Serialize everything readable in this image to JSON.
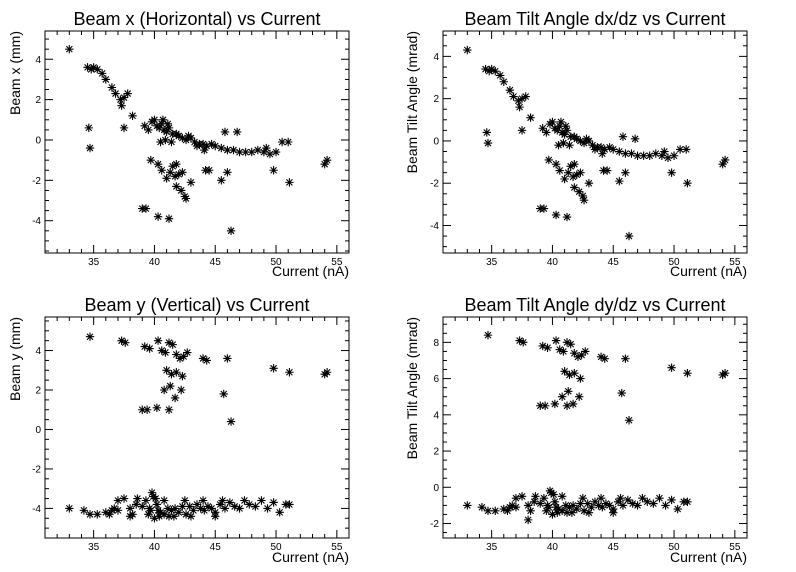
{
  "chart_data": [
    {
      "type": "scatter",
      "title": "Beam x (Horizontal) vs Current",
      "xlabel": "Current (nA)",
      "ylabel": "Beam x (mm)",
      "xlim": [
        31,
        56
      ],
      "ylim": [
        -5.6,
        5.4
      ],
      "xticks": [
        35,
        40,
        45,
        50,
        55
      ],
      "yticks": [
        -4,
        -2,
        0,
        2,
        4
      ],
      "ytick_labels": [
        "-4",
        "-2",
        "0",
        "2",
        "4"
      ],
      "series": [
        {
          "x": [
            33.0,
            34.5,
            34.8,
            35.0,
            35.3,
            35.7,
            36.0,
            36.5,
            36.8,
            37.2,
            37.5,
            37.8,
            38.2,
            37.3,
            37.5,
            34.6,
            34.7,
            39.2,
            39.5,
            39.8,
            40.0,
            40.2,
            40.4,
            40.6,
            40.8,
            41.0,
            41.2,
            41.5,
            41.8,
            42.0,
            42.3,
            42.6,
            43.0,
            43.3,
            43.7,
            44.0,
            44.3,
            44.7,
            45.0,
            45.5,
            46.0,
            46.5,
            47.0,
            47.5,
            48.0,
            48.5,
            49.0,
            49.5,
            50.0,
            50.5,
            51.0,
            39.7,
            40.3,
            40.6,
            41.0,
            41.3,
            41.7,
            42.0,
            42.3,
            42.5,
            43.0,
            41.8,
            42.2,
            42.6,
            41.5,
            41.8,
            44.2,
            44.5,
            45.5,
            46.0,
            39.0,
            39.3,
            40.3,
            41.2,
            46.3,
            49.8,
            51.1,
            54.0,
            54.2,
            40.7,
            41.1,
            42.8,
            40.5,
            40.9,
            41.4,
            43.5,
            44.1,
            45.8,
            46.8,
            49.2
          ],
          "y": [
            4.5,
            3.6,
            3.5,
            3.6,
            3.5,
            3.3,
            3.0,
            2.6,
            2.3,
            2.0,
            2.1,
            2.3,
            1.2,
            1.7,
            0.6,
            0.6,
            -0.4,
            0.7,
            0.5,
            0.9,
            1.0,
            0.7,
            0.6,
            0.8,
            0.5,
            0.4,
            0.6,
            0.3,
            0.3,
            0.2,
            0.1,
            0.0,
            0.1,
            -0.1,
            -0.2,
            -0.2,
            -0.3,
            -0.2,
            -0.3,
            -0.4,
            -0.5,
            -0.5,
            -0.6,
            -0.6,
            -0.6,
            -0.5,
            -0.6,
            -0.7,
            -0.6,
            -0.1,
            -0.1,
            -1.0,
            -1.2,
            -1.5,
            -1.9,
            -1.6,
            -1.8,
            -1.7,
            -1.6,
            -2.8,
            -2.1,
            -2.3,
            -2.5,
            -2.9,
            -1.3,
            -1.2,
            -1.5,
            -1.5,
            -2.0,
            -1.6,
            -3.4,
            -3.4,
            -3.8,
            -3.9,
            -4.5,
            -1.5,
            -2.1,
            -1.2,
            -1.0,
            1.0,
            0.8,
            0.2,
            -0.1,
            0.0,
            -0.1,
            -0.3,
            -0.5,
            0.4,
            0.4,
            -0.4
          ]
        }
      ]
    },
    {
      "type": "scatter",
      "title": "Beam Tilt Angle dx/dz vs Current",
      "xlabel": "Current (nA)",
      "ylabel": "Beam Tilt Angle (mrad)",
      "xlim": [
        31,
        56
      ],
      "ylim": [
        -5.3,
        5.2
      ],
      "xticks": [
        35,
        40,
        45,
        50,
        55
      ],
      "yticks": [
        -4,
        -2,
        0,
        2,
        4
      ],
      "ytick_labels": [
        "-4",
        "-2",
        "0",
        "2",
        "4"
      ],
      "series": [
        {
          "x": [
            33.0,
            34.5,
            34.8,
            35.0,
            35.3,
            35.7,
            36.0,
            36.5,
            36.8,
            37.2,
            37.5,
            37.8,
            38.2,
            37.3,
            37.5,
            34.6,
            34.7,
            39.2,
            39.5,
            39.8,
            40.0,
            40.2,
            40.4,
            40.6,
            40.8,
            41.0,
            41.2,
            41.5,
            41.8,
            42.0,
            42.3,
            42.6,
            43.0,
            43.3,
            43.7,
            44.0,
            44.3,
            44.7,
            45.0,
            45.5,
            46.0,
            46.5,
            47.0,
            47.5,
            48.0,
            48.5,
            49.0,
            49.5,
            50.0,
            50.5,
            51.0,
            39.7,
            40.3,
            40.6,
            41.0,
            41.3,
            41.7,
            42.0,
            42.3,
            42.5,
            43.0,
            41.8,
            42.2,
            42.6,
            41.5,
            41.8,
            44.2,
            44.5,
            45.5,
            46.0,
            39.0,
            39.3,
            40.3,
            41.2,
            46.3,
            49.8,
            51.1,
            54.0,
            54.2,
            40.7,
            41.1,
            42.8,
            40.5,
            40.9,
            41.4,
            43.5,
            44.1,
            45.8,
            46.8,
            49.2
          ],
          "y": [
            4.3,
            3.4,
            3.3,
            3.4,
            3.3,
            3.1,
            2.8,
            2.4,
            2.1,
            1.9,
            2.0,
            2.1,
            1.1,
            1.6,
            0.5,
            0.4,
            -0.1,
            0.6,
            0.4,
            0.8,
            0.9,
            0.6,
            0.5,
            0.7,
            0.4,
            0.3,
            0.5,
            0.2,
            0.2,
            0.1,
            0.0,
            -0.1,
            0.0,
            -0.2,
            -0.3,
            -0.3,
            -0.4,
            -0.3,
            -0.4,
            -0.5,
            -0.6,
            -0.6,
            -0.7,
            -0.7,
            -0.7,
            -0.6,
            -0.7,
            -0.8,
            -0.7,
            -0.4,
            -0.4,
            -0.9,
            -1.1,
            -1.4,
            -1.8,
            -1.5,
            -1.7,
            -1.6,
            -1.5,
            -2.6,
            -2.0,
            -2.2,
            -2.4,
            -2.8,
            -1.2,
            -1.1,
            -1.4,
            -1.4,
            -1.9,
            -1.5,
            -3.2,
            -3.2,
            -3.5,
            -3.6,
            -4.5,
            -1.5,
            -2.0,
            -1.1,
            -0.9,
            0.9,
            0.7,
            0.1,
            -0.2,
            -0.1,
            -0.2,
            -0.4,
            -0.6,
            0.2,
            0.1,
            -0.5
          ]
        }
      ]
    },
    {
      "type": "scatter",
      "title": "Beam y (Vertical) vs Current",
      "xlabel": "Current (nA)",
      "ylabel": "Beam y (mm)",
      "xlim": [
        31,
        56
      ],
      "ylim": [
        -5.5,
        5.7
      ],
      "xticks": [
        35,
        40,
        45,
        50,
        55
      ],
      "yticks": [
        -4,
        -2,
        0,
        2,
        4
      ],
      "ytick_labels": [
        "-4",
        "-2",
        "0",
        "2",
        "4"
      ],
      "series": [
        {
          "x": [
            34.7,
            37.3,
            37.6,
            39.2,
            39.6,
            40.3,
            40.6,
            40.9,
            41.2,
            41.5,
            41.8,
            42.1,
            42.4,
            42.7,
            41.0,
            41.4,
            41.8,
            42.3,
            44.0,
            44.3,
            46.0,
            40.8,
            41.3,
            41.7,
            42.2,
            39.0,
            39.4,
            40.2,
            41.2,
            45.7,
            46.3,
            49.8,
            51.1,
            54.0,
            54.2,
            33.0,
            34.2,
            34.7,
            35.3,
            36.0,
            36.5,
            37.0,
            37.5,
            38.0,
            38.5,
            39.0,
            39.3,
            39.6,
            39.9,
            40.2,
            40.5,
            40.8,
            41.1,
            41.4,
            41.7,
            42.0,
            42.3,
            42.6,
            42.9,
            43.2,
            43.5,
            43.8,
            44.1,
            44.4,
            44.7,
            45.0,
            45.4,
            45.8,
            46.2,
            46.6,
            47.0,
            47.4,
            47.8,
            48.3,
            48.8,
            49.3,
            49.8,
            50.3,
            50.8,
            51.1,
            36.3,
            37.0,
            38.0,
            38.6,
            39.5,
            39.8,
            40.0,
            40.1,
            40.4,
            40.8,
            41.6,
            42.5,
            43.0,
            44.0,
            45.0,
            45.6,
            38.2,
            36.7,
            41.2,
            39.7,
            40.3
          ],
          "y": [
            4.7,
            4.5,
            4.4,
            4.2,
            4.1,
            4.5,
            4.0,
            3.9,
            4.4,
            4.3,
            3.8,
            3.6,
            3.7,
            3.9,
            3.0,
            2.8,
            2.9,
            2.7,
            3.6,
            3.5,
            3.6,
            2.0,
            2.2,
            1.6,
            2.0,
            1.0,
            1.0,
            1.1,
            1.0,
            1.8,
            0.4,
            3.1,
            2.9,
            2.8,
            2.9,
            -4.0,
            -4.1,
            -4.3,
            -4.3,
            -4.2,
            -4.1,
            -3.6,
            -3.5,
            -4.0,
            -3.8,
            -3.9,
            -3.6,
            -4.0,
            -3.4,
            -3.8,
            -4.2,
            -4.3,
            -4.0,
            -4.1,
            -4.0,
            -4.2,
            -3.9,
            -4.3,
            -3.9,
            -4.1,
            -3.8,
            -4.0,
            -4.1,
            -3.9,
            -4.0,
            -4.2,
            -3.8,
            -4.0,
            -3.7,
            -3.9,
            -4.0,
            -3.6,
            -3.8,
            -3.9,
            -3.6,
            -4.0,
            -3.7,
            -4.2,
            -3.8,
            -3.8,
            -4.3,
            -4.1,
            -4.4,
            -3.5,
            -4.3,
            -3.2,
            -4.5,
            -3.5,
            -4.4,
            -3.6,
            -4.4,
            -3.6,
            -4.4,
            -3.6,
            -4.4,
            -3.6,
            -4.3,
            -4.0,
            -4.4,
            -4.1,
            -4.1
          ],
          "note": ""
        }
      ]
    },
    {
      "type": "scatter",
      "title": "Beam Tilt Angle dy/dz vs Current",
      "xlabel": "Current (nA)",
      "ylabel": "Beam Tilt Angle (mrad)",
      "xlim": [
        31,
        56
      ],
      "ylim": [
        -2.8,
        9.4
      ],
      "xticks": [
        35,
        40,
        45,
        50,
        55
      ],
      "yticks": [
        -2,
        0,
        2,
        4,
        6,
        8
      ],
      "ytick_labels": [
        "-2",
        "0",
        "2",
        "4",
        "6",
        "8"
      ],
      "series": [
        {
          "x": [
            34.7,
            37.3,
            37.6,
            39.2,
            39.6,
            40.3,
            40.6,
            40.9,
            41.2,
            41.5,
            41.8,
            42.1,
            42.4,
            42.7,
            41.0,
            41.4,
            41.8,
            42.3,
            44.0,
            44.3,
            46.0,
            40.8,
            41.3,
            41.7,
            42.2,
            39.0,
            39.4,
            40.2,
            41.2,
            45.7,
            46.3,
            49.8,
            51.1,
            54.0,
            54.2,
            33.0,
            34.2,
            34.7,
            35.3,
            36.0,
            36.5,
            37.0,
            37.5,
            38.0,
            38.5,
            39.0,
            39.3,
            39.6,
            39.9,
            40.2,
            40.5,
            40.8,
            41.1,
            41.4,
            41.7,
            42.0,
            42.3,
            42.6,
            42.9,
            43.2,
            43.5,
            43.8,
            44.1,
            44.4,
            44.7,
            45.0,
            45.4,
            45.8,
            46.2,
            46.6,
            47.0,
            47.4,
            47.8,
            48.3,
            48.8,
            49.3,
            49.8,
            50.3,
            50.8,
            51.1,
            36.3,
            37.0,
            38.0,
            38.6,
            39.5,
            39.8,
            40.0,
            40.1,
            40.4,
            40.8,
            41.6,
            42.5,
            43.0,
            44.0,
            45.0,
            45.6,
            38.2,
            36.7,
            41.2,
            39.7,
            40.3
          ],
          "y": [
            8.4,
            8.1,
            8.0,
            7.8,
            7.7,
            8.1,
            7.6,
            7.5,
            8.0,
            7.9,
            7.4,
            7.2,
            7.3,
            7.5,
            6.4,
            6.2,
            6.3,
            6.0,
            7.2,
            7.1,
            7.1,
            5.0,
            5.3,
            4.6,
            5.0,
            4.5,
            4.5,
            4.6,
            4.5,
            5.2,
            3.7,
            6.6,
            6.3,
            6.2,
            6.3,
            -1.0,
            -1.1,
            -1.3,
            -1.3,
            -1.2,
            -1.1,
            -0.6,
            -0.5,
            -1.0,
            -0.8,
            -0.9,
            -0.6,
            -1.0,
            -0.3,
            -0.8,
            -1.2,
            -1.3,
            -1.0,
            -1.1,
            -1.0,
            -1.2,
            -0.9,
            -1.3,
            -0.9,
            -1.1,
            -0.8,
            -1.0,
            -1.1,
            -0.9,
            -1.0,
            -1.2,
            -0.8,
            -1.0,
            -0.7,
            -0.9,
            -1.0,
            -0.6,
            -0.8,
            -0.9,
            -0.6,
            -1.0,
            -0.7,
            -1.2,
            -0.8,
            -0.8,
            -1.3,
            -1.1,
            -1.8,
            -0.5,
            -1.3,
            -0.2,
            -1.5,
            -0.4,
            -1.4,
            -0.5,
            -1.4,
            -0.6,
            -1.4,
            -0.6,
            -1.4,
            -0.6,
            -1.3,
            -1.0,
            -1.4,
            -1.1,
            -1.1
          ]
        }
      ]
    }
  ]
}
